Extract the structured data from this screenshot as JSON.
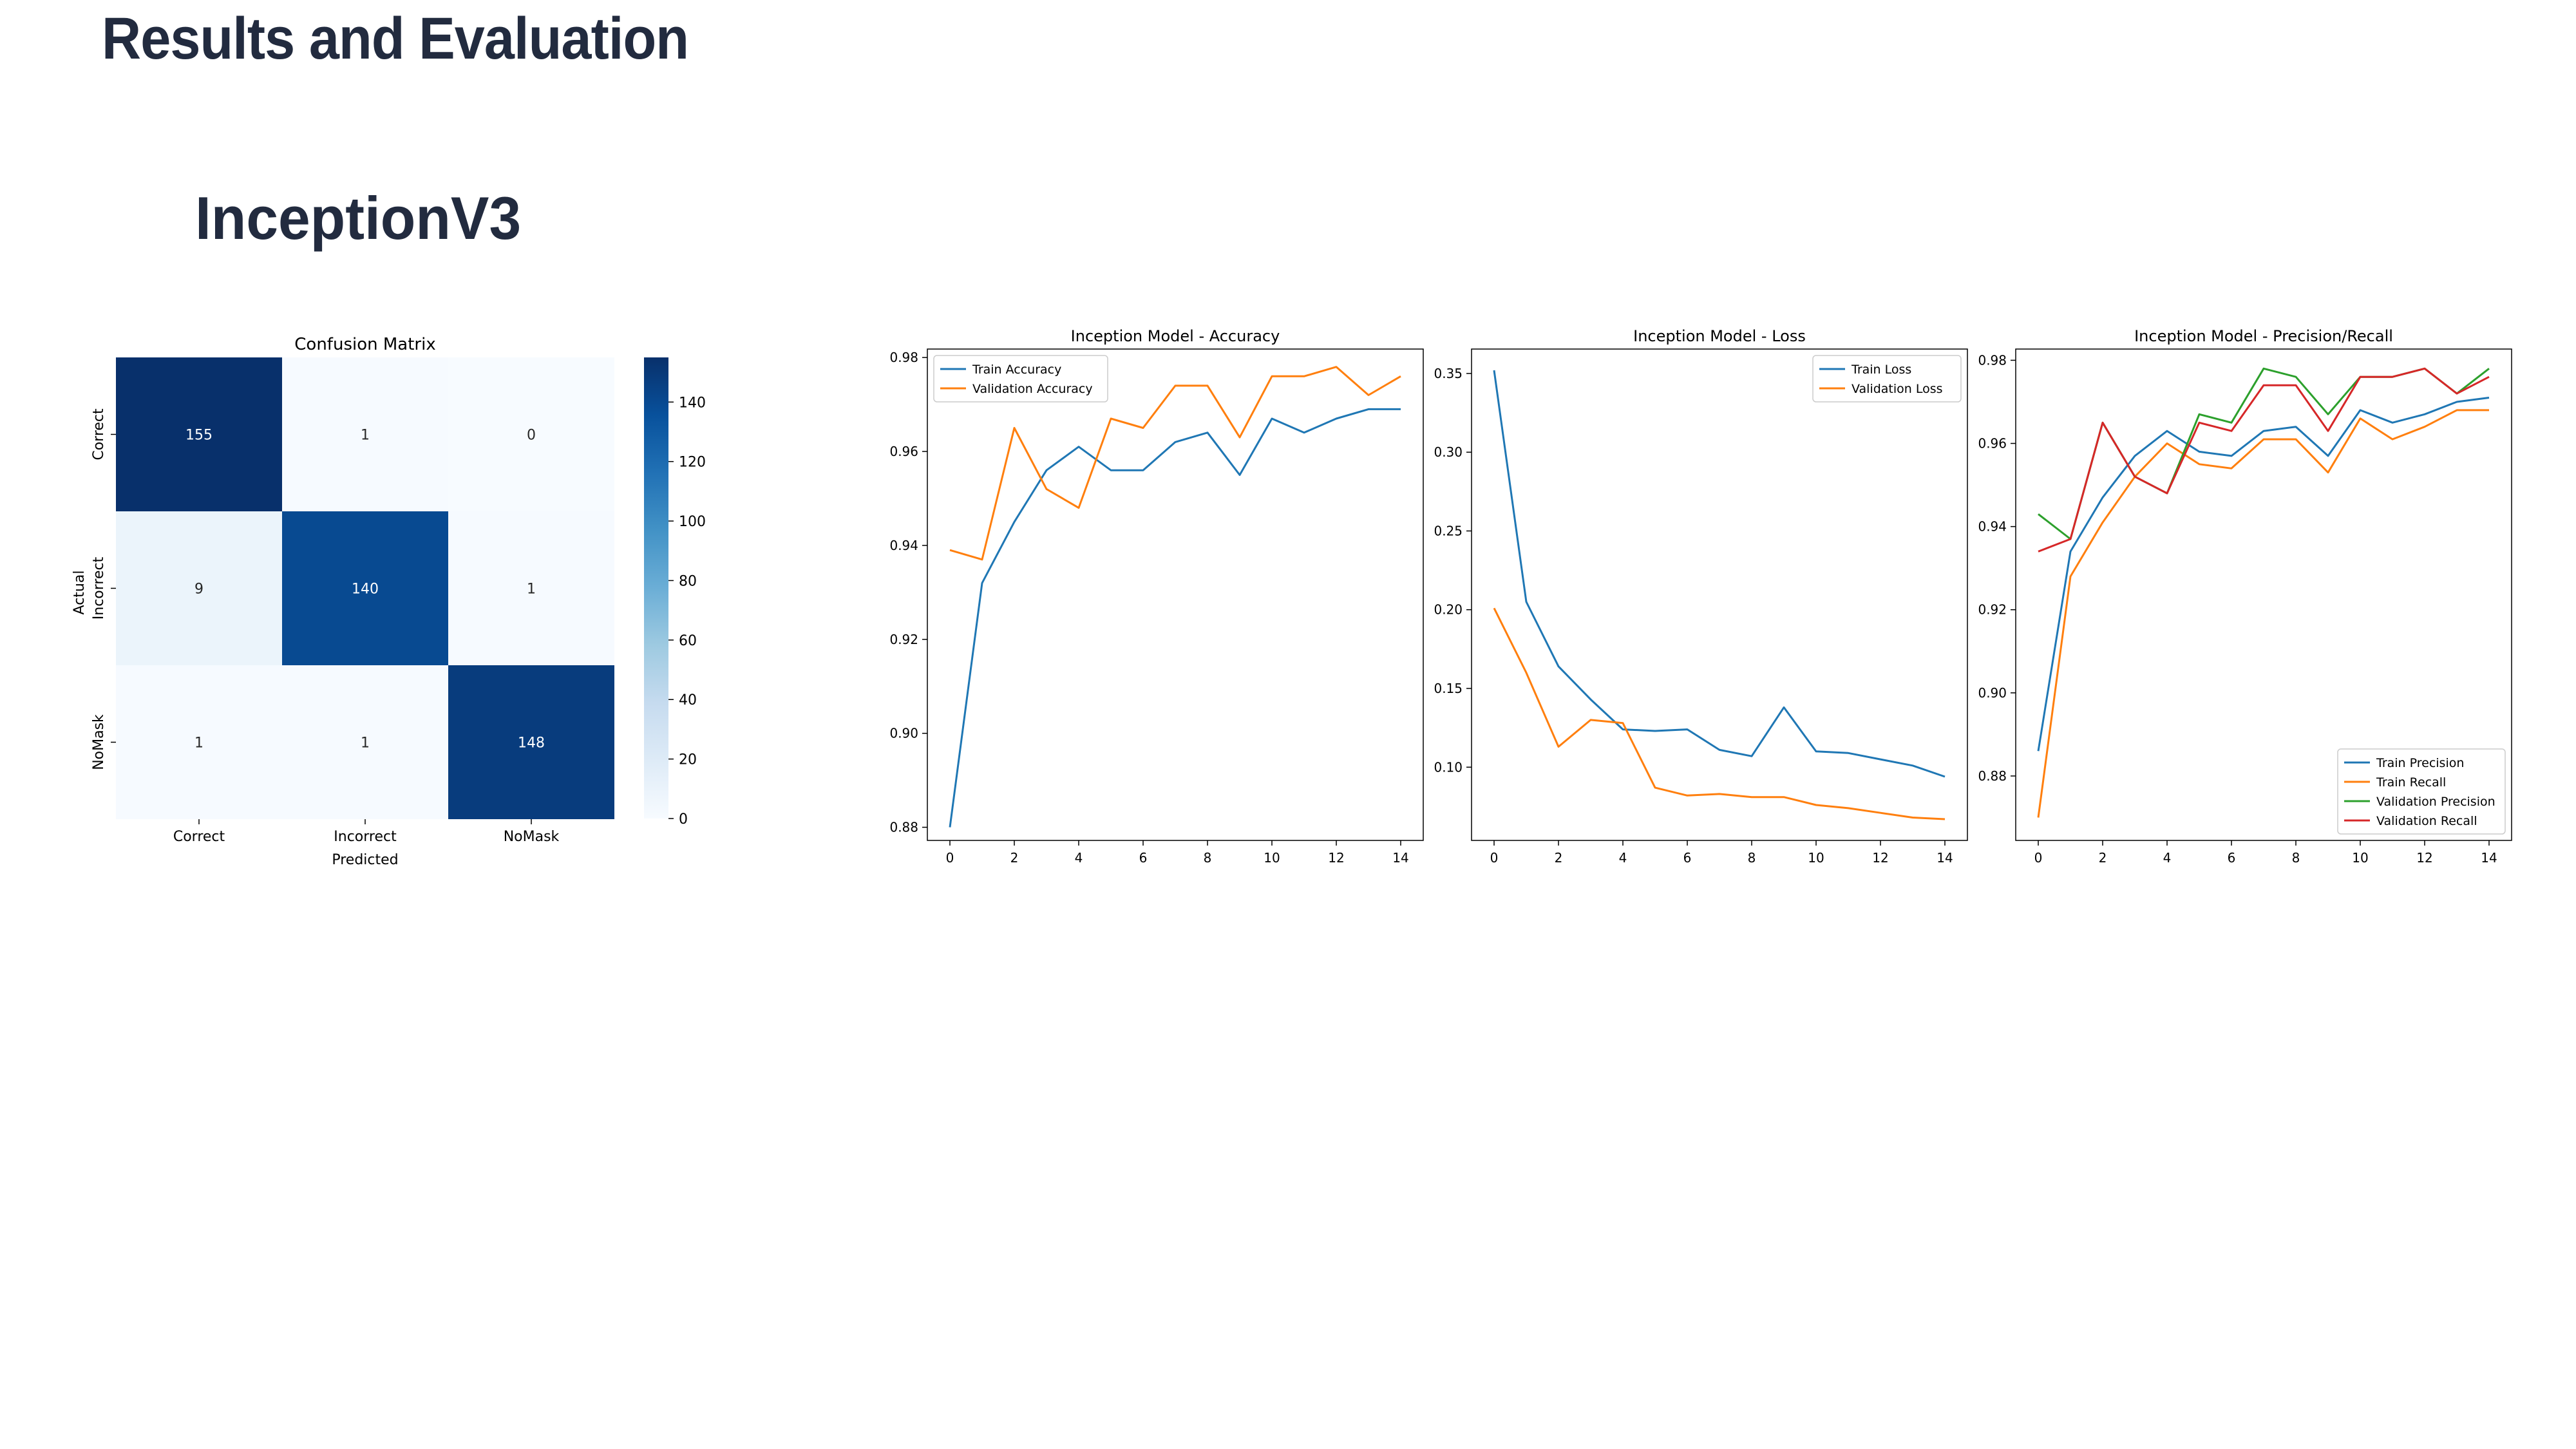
{
  "slide": {
    "title": "Results and Evaluation",
    "model_name": "InceptionV3"
  },
  "colors": {
    "title": "#222b3f",
    "series_blue": "#1f77b4",
    "series_orange": "#ff7f0e",
    "series_green": "#2ca02c",
    "series_red": "#d62728"
  },
  "chart_data": [
    {
      "type": "heatmap",
      "title": "Confusion Matrix",
      "xlabel": "Predicted",
      "ylabel": "Actual",
      "x_categories": [
        "Correct",
        "Incorrect",
        "NoMask"
      ],
      "y_categories": [
        "Correct",
        "Incorrect",
        "NoMask"
      ],
      "values": [
        [
          155,
          1,
          0
        ],
        [
          9,
          140,
          1
        ],
        [
          1,
          1,
          148
        ]
      ],
      "colorbar": {
        "range": [
          0,
          155
        ],
        "ticks": [
          0,
          20,
          40,
          60,
          80,
          100,
          120,
          140
        ],
        "colormap": "Blues"
      }
    },
    {
      "type": "line",
      "title": "Inception Model - Accuracy",
      "x": [
        0,
        1,
        2,
        3,
        4,
        5,
        6,
        7,
        8,
        9,
        10,
        11,
        12,
        13,
        14
      ],
      "xticks": [
        0,
        2,
        4,
        6,
        8,
        10,
        12,
        14
      ],
      "yticks": [
        0.88,
        0.9,
        0.92,
        0.94,
        0.96,
        0.98
      ],
      "yticklabels": [
        "0.88",
        "0.90",
        "0.92",
        "0.94",
        "0.96",
        "0.98"
      ],
      "ylim": [
        0.8772,
        0.9818
      ],
      "legend": "upper-left",
      "series": [
        {
          "name": "Train Accuracy",
          "color": "#1f77b4",
          "values": [
            0.88,
            0.932,
            0.945,
            0.956,
            0.961,
            0.956,
            0.956,
            0.962,
            0.964,
            0.955,
            0.967,
            0.964,
            0.967,
            0.969,
            0.969
          ]
        },
        {
          "name": "Validation Accuracy",
          "color": "#ff7f0e",
          "values": [
            0.939,
            0.937,
            0.965,
            0.952,
            0.948,
            0.967,
            0.965,
            0.974,
            0.974,
            0.963,
            0.976,
            0.976,
            0.978,
            0.972,
            0.976
          ]
        }
      ]
    },
    {
      "type": "line",
      "title": "Inception Model - Loss",
      "x": [
        0,
        1,
        2,
        3,
        4,
        5,
        6,
        7,
        8,
        9,
        10,
        11,
        12,
        13,
        14
      ],
      "xticks": [
        0,
        2,
        4,
        6,
        8,
        10,
        12,
        14
      ],
      "yticks": [
        0.1,
        0.15,
        0.2,
        0.25,
        0.3,
        0.35
      ],
      "yticklabels": [
        "0.10",
        "0.15",
        "0.20",
        "0.25",
        "0.30",
        "0.35"
      ],
      "ylim": [
        0.0535,
        0.3655
      ],
      "legend": "upper-right",
      "series": [
        {
          "name": "Train Loss",
          "color": "#1f77b4",
          "values": [
            0.352,
            0.205,
            0.164,
            0.143,
            0.124,
            0.123,
            0.124,
            0.111,
            0.107,
            0.138,
            0.11,
            0.109,
            0.105,
            0.101,
            0.094
          ]
        },
        {
          "name": "Validation Loss",
          "color": "#ff7f0e",
          "values": [
            0.201,
            0.16,
            0.113,
            0.13,
            0.128,
            0.087,
            0.082,
            0.083,
            0.081,
            0.081,
            0.076,
            0.074,
            0.071,
            0.068,
            0.067
          ]
        }
      ]
    },
    {
      "type": "line",
      "title": "Inception Model - Precision/Recall",
      "x": [
        0,
        1,
        2,
        3,
        4,
        5,
        6,
        7,
        8,
        9,
        10,
        11,
        12,
        13,
        14
      ],
      "xticks": [
        0,
        2,
        4,
        6,
        8,
        10,
        12,
        14
      ],
      "yticks": [
        0.88,
        0.9,
        0.92,
        0.94,
        0.96,
        0.98
      ],
      "yticklabels": [
        "0.88",
        "0.90",
        "0.92",
        "0.94",
        "0.96",
        "0.98"
      ],
      "ylim": [
        0.8645,
        0.9827
      ],
      "legend": "lower-right",
      "series": [
        {
          "name": "Train Precision",
          "color": "#1f77b4",
          "values": [
            0.886,
            0.934,
            0.947,
            0.957,
            0.963,
            0.958,
            0.957,
            0.963,
            0.964,
            0.957,
            0.968,
            0.965,
            0.967,
            0.97,
            0.971
          ]
        },
        {
          "name": "Train Recall",
          "color": "#ff7f0e",
          "values": [
            0.87,
            0.928,
            0.941,
            0.952,
            0.96,
            0.955,
            0.954,
            0.961,
            0.961,
            0.953,
            0.966,
            0.961,
            0.964,
            0.968,
            0.968
          ]
        },
        {
          "name": "Validation Precision",
          "color": "#2ca02c",
          "values": [
            0.943,
            0.937,
            0.965,
            0.952,
            0.948,
            0.967,
            0.965,
            0.978,
            0.976,
            0.967,
            0.976,
            0.976,
            0.978,
            0.972,
            0.978
          ]
        },
        {
          "name": "Validation Recall",
          "color": "#d62728",
          "values": [
            0.934,
            0.937,
            0.965,
            0.952,
            0.948,
            0.965,
            0.963,
            0.974,
            0.974,
            0.963,
            0.976,
            0.976,
            0.978,
            0.972,
            0.976
          ]
        }
      ]
    }
  ]
}
